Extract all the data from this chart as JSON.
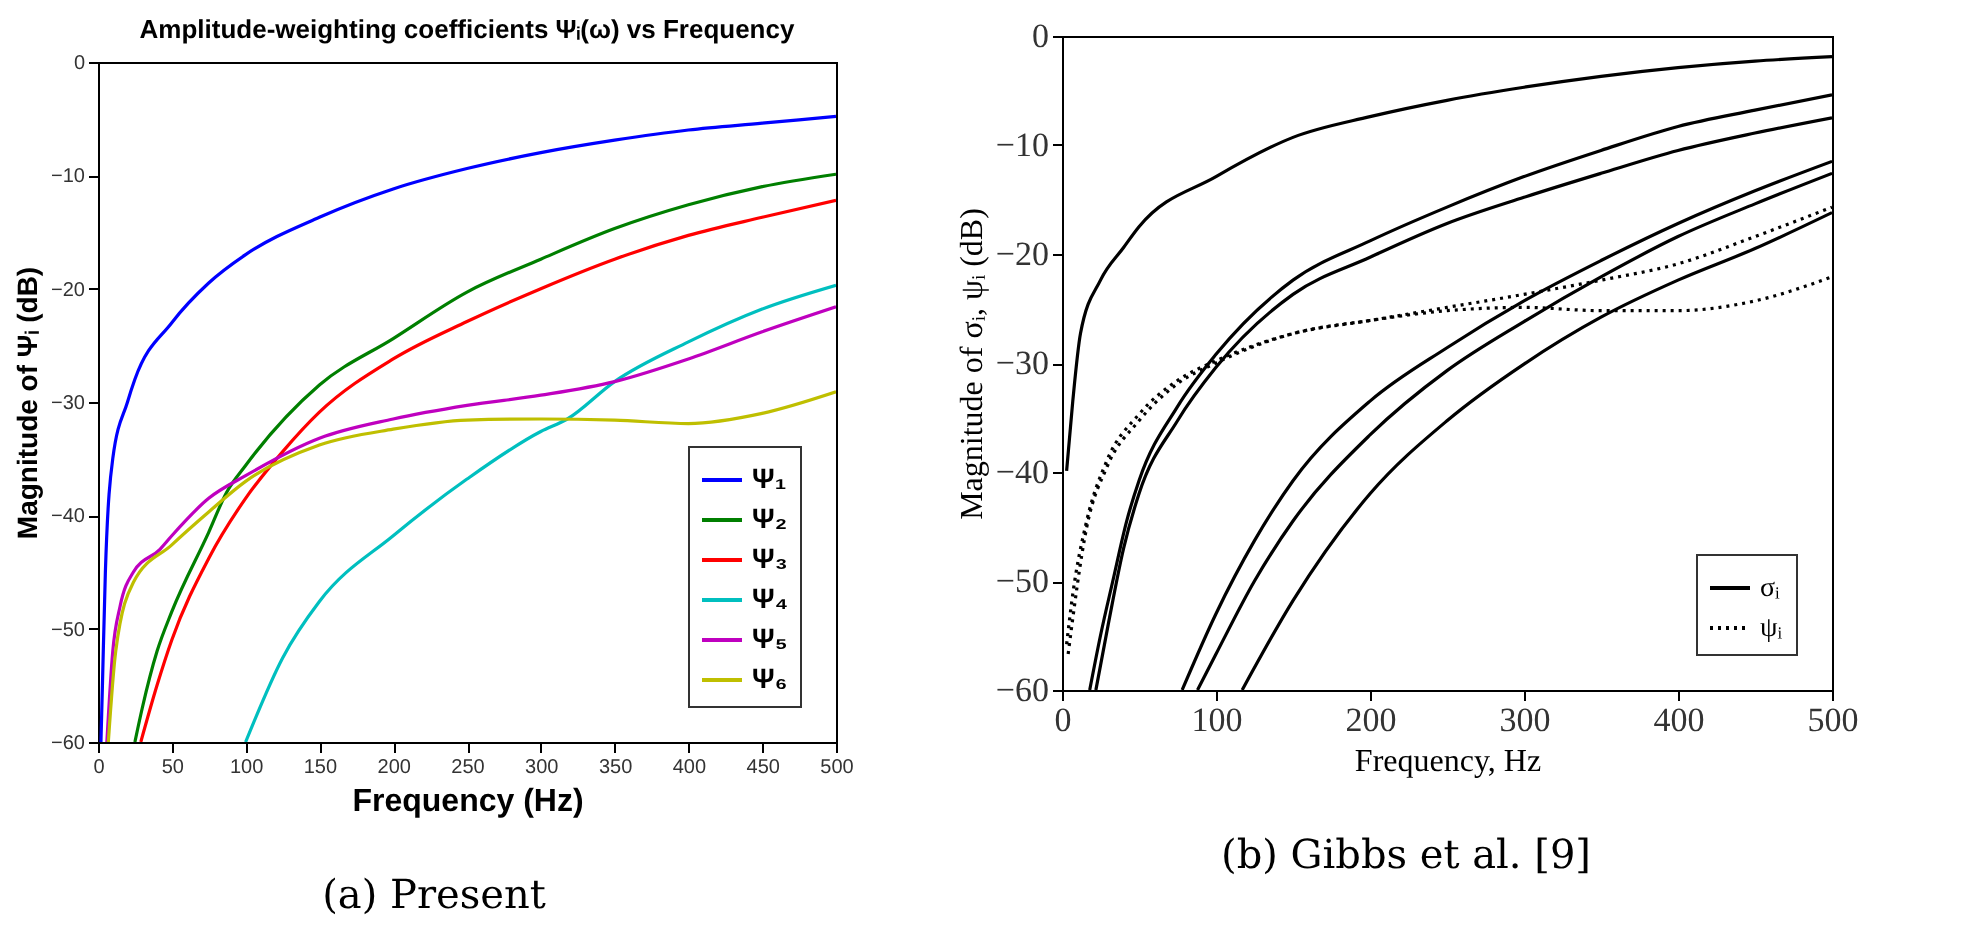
{
  "chart_data": [
    {
      "type": "line",
      "title": "Amplitude-weighting coefficients Ψᵢ(ω) vs Frequency",
      "xlabel": "Frequency (Hz)",
      "ylabel": "Magnitude of Ψᵢ (dB)",
      "xlim": [
        0,
        500
      ],
      "ylim": [
        -60,
        0
      ],
      "xticks": [
        0,
        50,
        100,
        150,
        200,
        250,
        300,
        350,
        400,
        450,
        500
      ],
      "yticks": [
        -60,
        -50,
        -40,
        -30,
        -20,
        -10,
        0
      ],
      "grid": false,
      "legend": "bottom right",
      "line_style": "solid",
      "annotations": [
        "(a) Present"
      ],
      "series": [
        {
          "name": "Ψ₁",
          "color": "#0000ff",
          "x": [
            2,
            3,
            5,
            10,
            20,
            25,
            50,
            75,
            100,
            150,
            200,
            250,
            300,
            350,
            400,
            450,
            500
          ],
          "values": [
            -60,
            -55,
            -45,
            -35,
            -30,
            -28,
            -23,
            -19.5,
            -17,
            -13.7,
            -11.2,
            -9.4,
            -8,
            -6.9,
            -6,
            -5.4,
            -4.8
          ]
        },
        {
          "name": "Ψ₂",
          "color": "#007f00",
          "x": [
            25,
            30,
            40,
            50,
            75,
            87,
            100,
            150,
            200,
            250,
            300,
            350,
            400,
            450,
            500
          ],
          "values": [
            -60,
            -57,
            -52,
            -48.5,
            -41.5,
            -38,
            -35.6,
            -28.5,
            -24.4,
            -20.3,
            -17.4,
            -14.7,
            -12.6,
            -11,
            -9.9
          ]
        },
        {
          "name": "Ψ₃",
          "color": "#ff0000",
          "x": [
            29,
            40,
            50,
            75,
            100,
            125,
            150,
            200,
            250,
            300,
            350,
            400,
            450,
            500
          ],
          "values": [
            -60,
            -55,
            -51,
            -43.8,
            -38.5,
            -34.4,
            -30.9,
            -26.2,
            -22.9,
            -20,
            -17.4,
            -15.3,
            -13.7,
            -12.2
          ]
        },
        {
          "name": "Ψ₄",
          "color": "#00bfbf",
          "x": [
            100,
            125,
            150,
            200,
            250,
            300,
            318,
            350,
            400,
            450,
            500
          ],
          "values": [
            -60,
            -52.6,
            -47.6,
            -41.8,
            -36.8,
            -32.6,
            -31.5,
            -28.2,
            -24.7,
            -21.8,
            -19.7
          ]
        },
        {
          "name": "Ψ₅",
          "color": "#bf00bf",
          "x": [
            6,
            10,
            15,
            24,
            42,
            50,
            75,
            100,
            150,
            200,
            250,
            300,
            350,
            400,
            450,
            500
          ],
          "values": [
            -60,
            -52,
            -48,
            -45,
            -43,
            -41.8,
            -38.5,
            -36.5,
            -33.2,
            -31.5,
            -30.3,
            -29.4,
            -28.2,
            -26.2,
            -23.8,
            -21.6
          ]
        },
        {
          "name": "Ψ₆",
          "color": "#bfbf00",
          "x": [
            7,
            12,
            24,
            50,
            75,
            100,
            150,
            200,
            250,
            300,
            350,
            400,
            450,
            500
          ],
          "values": [
            -60,
            -52,
            -45.9,
            -42.6,
            -39.7,
            -37,
            -33.8,
            -32.4,
            -31.6,
            -31.5,
            -31.6,
            -31.9,
            -31,
            -29.1
          ]
        }
      ]
    },
    {
      "type": "line",
      "xlabel": "Frequency, Hz",
      "ylabel": "Magnitude of σᵢ, ψᵢ (dB)",
      "xlim": [
        0,
        500
      ],
      "ylim": [
        -60,
        0
      ],
      "xticks": [
        0,
        100,
        200,
        300,
        400,
        500
      ],
      "yticks": [
        -60,
        -50,
        -40,
        -30,
        -20,
        -10,
        0
      ],
      "grid": false,
      "legend": "bottom right",
      "annotations": [
        "(b) Gibbs et al. [9]"
      ],
      "series": [
        {
          "name": "σᵢ",
          "color": "#000000",
          "line_style": "solid",
          "x": [
            3,
            7,
            12,
            25,
            40,
            50,
            100,
            150,
            200,
            250,
            300,
            350,
            400,
            450,
            500
          ],
          "values": [
            -39.9,
            -33.5,
            -27.3,
            -22.4,
            -19.4,
            -17.5,
            -12.9,
            -9.3,
            -7.4,
            -5.9,
            -4.7,
            -3.7,
            -2.9,
            -2.3,
            -1.9
          ]
        },
        {
          "color": "#000000",
          "line_style": "solid",
          "x": [
            18,
            25,
            33,
            42,
            50,
            75,
            100,
            150,
            200,
            250,
            300,
            350,
            400,
            450,
            500
          ],
          "values": [
            -60,
            -55,
            -50,
            -44.5,
            -40.8,
            -34,
            -29.2,
            -22.4,
            -18.8,
            -15.7,
            -12.9,
            -10.5,
            -8.3,
            -6.8,
            -5.4
          ]
        },
        {
          "color": "#000000",
          "line_style": "solid",
          "x": [
            22,
            30,
            40,
            50,
            75,
            100,
            150,
            200,
            250,
            300,
            350,
            400,
            450,
            500
          ],
          "values": [
            -60,
            -54,
            -47,
            -42,
            -35.3,
            -30.4,
            -23.7,
            -20.3,
            -17.2,
            -14.8,
            -12.6,
            -10.5,
            -8.9,
            -7.5
          ]
        },
        {
          "color": "#000000",
          "line_style": "solid",
          "x": [
            78,
            100,
            125,
            150,
            200,
            250,
            300,
            350,
            400,
            450,
            500
          ],
          "values": [
            -60,
            -53,
            -46.3,
            -40.8,
            -33.5,
            -28.6,
            -24.3,
            -20.6,
            -17.2,
            -14.2,
            -11.5
          ]
        },
        {
          "color": "#000000",
          "line_style": "solid",
          "x": [
            88,
            100,
            125,
            150,
            200,
            250,
            300,
            350,
            400,
            450,
            500
          ],
          "values": [
            -60,
            -56.7,
            -50,
            -44.5,
            -36.6,
            -30.7,
            -26.2,
            -22.1,
            -18.4,
            -15.4,
            -12.6
          ]
        },
        {
          "color": "#000000",
          "line_style": "solid",
          "x": [
            117,
            150,
            200,
            250,
            300,
            350,
            400,
            450,
            500
          ],
          "values": [
            -60,
            -51.8,
            -42,
            -35.3,
            -30.1,
            -25.8,
            -22.4,
            -19.5,
            -16.2
          ]
        },
        {
          "name": "ψᵢ",
          "color": "#000000",
          "line_style": "dotted",
          "x": [
            3,
            7,
            16,
            29,
            50,
            75,
            100,
            150,
            200,
            250,
            300,
            350,
            400,
            450,
            500
          ],
          "values": [
            -55.8,
            -51.2,
            -44.5,
            -39,
            -34.7,
            -31.6,
            -29.8,
            -27.3,
            -26.1,
            -24.9,
            -23.7,
            -22.4,
            -20.9,
            -18.4,
            -15.7
          ]
        },
        {
          "color": "#000000",
          "line_style": "dotted",
          "x": [
            4,
            16,
            29,
            50,
            75,
            100,
            150,
            200,
            250,
            300,
            350,
            400,
            450,
            500
          ],
          "values": [
            -56.7,
            -45.1,
            -39.6,
            -35.3,
            -31.9,
            -30,
            -27.3,
            -26.1,
            -25.2,
            -24.9,
            -25.2,
            -25.2,
            -24.3,
            -22.1
          ]
        }
      ]
    }
  ]
}
